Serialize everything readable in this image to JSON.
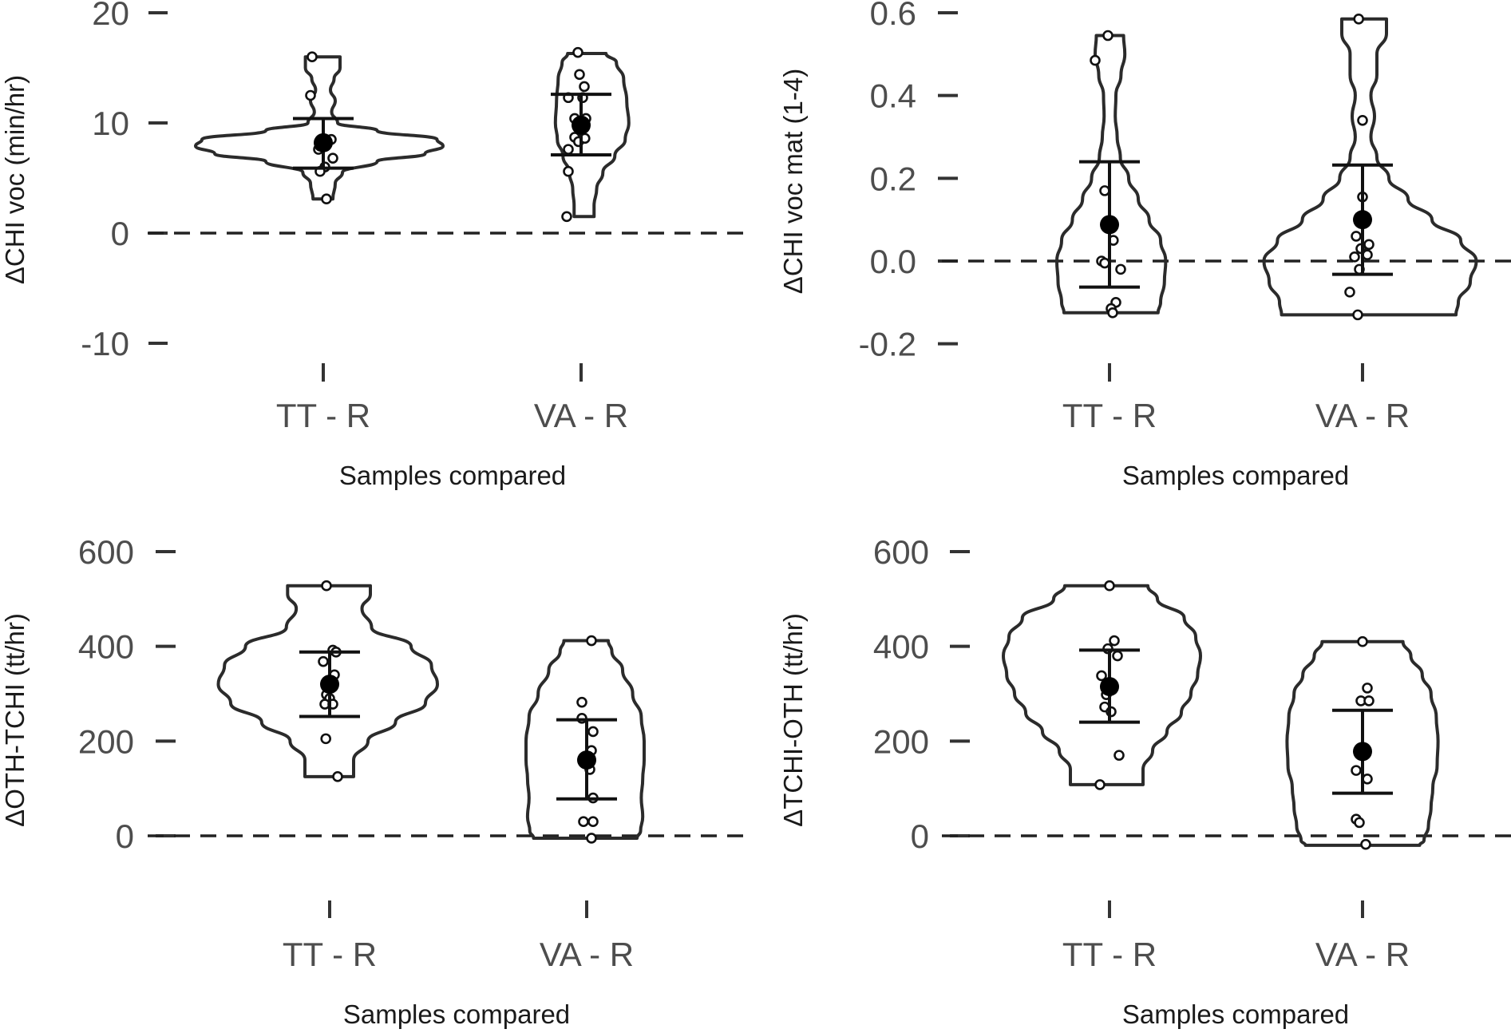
{
  "chart_data": [
    {
      "type": "violin",
      "ylabel": "ΔCHI voc (min/hr)",
      "xlabel": "Samples compared",
      "categories": [
        "TT - R",
        "VA - R"
      ],
      "ylim": [
        -10,
        20
      ],
      "yticks": [
        -10,
        0,
        10,
        20
      ],
      "ytick_labels": [
        "-10",
        "0",
        "10",
        "20"
      ],
      "reference_line": 0,
      "groups": [
        {
          "category": "TT - R",
          "mean": 8.2,
          "ci_low": 5.9,
          "ci_high": 10.4,
          "points": [
            [
              -0.35,
              16.0
            ],
            [
              -0.4,
              12.5
            ],
            [
              -0.15,
              7.6
            ],
            [
              -0.1,
              7.9
            ],
            [
              0.0,
              8.3
            ],
            [
              0.25,
              8.5
            ],
            [
              0.05,
              6.0
            ],
            [
              0.3,
              6.8
            ],
            [
              -0.1,
              5.6
            ],
            [
              0.1,
              3.1
            ]
          ],
          "density": [
            [
              16.0,
              0.14
            ],
            [
              15.0,
              0.14
            ],
            [
              14.0,
              0.09
            ],
            [
              13.0,
              0.06
            ],
            [
              12.0,
              0.1
            ],
            [
              11.0,
              0.07
            ],
            [
              10.0,
              0.12
            ],
            [
              9.3,
              0.45
            ],
            [
              8.5,
              0.95
            ],
            [
              7.9,
              1.0
            ],
            [
              7.2,
              0.85
            ],
            [
              6.5,
              0.45
            ],
            [
              5.5,
              0.16
            ],
            [
              4.5,
              0.1
            ],
            [
              3.1,
              0.08
            ]
          ]
        },
        {
          "category": "VA - R",
          "mean": 9.8,
          "ci_low": 7.1,
          "ci_high": 12.6,
          "points": [
            [
              -0.1,
              16.4
            ],
            [
              -0.05,
              14.4
            ],
            [
              0.1,
              13.3
            ],
            [
              -0.4,
              12.3
            ],
            [
              0.05,
              12.3
            ],
            [
              -0.2,
              10.4
            ],
            [
              0.15,
              10.4
            ],
            [
              -0.2,
              8.7
            ],
            [
              -0.08,
              8.3
            ],
            [
              0.12,
              8.6
            ],
            [
              -0.4,
              7.6
            ],
            [
              -0.4,
              5.6
            ],
            [
              -0.45,
              1.5
            ]
          ],
          "density": [
            [
              16.3,
              0.48
            ],
            [
              15.5,
              0.68
            ],
            [
              14.0,
              0.82
            ],
            [
              12.0,
              0.88
            ],
            [
              10.0,
              0.92
            ],
            [
              8.5,
              0.85
            ],
            [
              7.0,
              0.65
            ],
            [
              5.5,
              0.42
            ],
            [
              4.0,
              0.3
            ],
            [
              2.5,
              0.25
            ],
            [
              1.5,
              0.25
            ]
          ]
        }
      ]
    },
    {
      "type": "violin",
      "ylabel": "ΔCHI voc mat (1-4)",
      "xlabel": "Samples compared",
      "categories": [
        "TT - R",
        "VA - R"
      ],
      "ylim": [
        -0.2,
        0.6
      ],
      "yticks": [
        -0.2,
        0.0,
        0.2,
        0.4,
        0.6
      ],
      "ytick_labels": [
        "-0.2",
        "0.0",
        "0.2",
        "0.4",
        "0.6"
      ],
      "reference_line": 0,
      "groups": [
        {
          "category": "TT - R",
          "mean": 0.088,
          "ci_low": -0.063,
          "ci_high": 0.24,
          "points": [
            [
              -0.05,
              0.545
            ],
            [
              -0.45,
              0.485
            ],
            [
              -0.15,
              0.17
            ],
            [
              0.12,
              0.05
            ],
            [
              -0.25,
              0.0
            ],
            [
              -0.15,
              -0.005
            ],
            [
              0.35,
              -0.02
            ],
            [
              0.2,
              -0.1
            ],
            [
              0.05,
              -0.115
            ],
            [
              0.1,
              -0.125
            ]
          ],
          "density": [
            [
              0.545,
              0.22
            ],
            [
              0.5,
              0.24
            ],
            [
              0.45,
              0.18
            ],
            [
              0.4,
              0.1
            ],
            [
              0.35,
              0.09
            ],
            [
              0.3,
              0.12
            ],
            [
              0.25,
              0.17
            ],
            [
              0.2,
              0.3
            ],
            [
              0.15,
              0.45
            ],
            [
              0.1,
              0.62
            ],
            [
              0.05,
              0.8
            ],
            [
              0.0,
              0.88
            ],
            [
              -0.05,
              0.86
            ],
            [
              -0.1,
              0.8
            ],
            [
              -0.125,
              0.76
            ]
          ]
        },
        {
          "category": "VA - R",
          "mean": 0.1,
          "ci_low": -0.032,
          "ci_high": 0.232,
          "points": [
            [
              -0.12,
              0.585
            ],
            [
              0.0,
              0.34
            ],
            [
              0.0,
              0.155
            ],
            [
              -0.1,
              0.105
            ],
            [
              -0.2,
              0.06
            ],
            [
              -0.05,
              0.03
            ],
            [
              0.2,
              0.04
            ],
            [
              -0.25,
              0.01
            ],
            [
              0.15,
              0.015
            ],
            [
              -0.1,
              -0.02
            ],
            [
              -0.4,
              -0.075
            ],
            [
              -0.15,
              -0.13
            ]
          ],
          "density": [
            [
              0.585,
              0.2
            ],
            [
              0.55,
              0.2
            ],
            [
              0.5,
              0.12
            ],
            [
              0.45,
              0.12
            ],
            [
              0.4,
              0.07
            ],
            [
              0.35,
              0.1
            ],
            [
              0.3,
              0.07
            ],
            [
              0.25,
              0.12
            ],
            [
              0.2,
              0.22
            ],
            [
              0.15,
              0.38
            ],
            [
              0.1,
              0.58
            ],
            [
              0.05,
              0.82
            ],
            [
              0.0,
              0.95
            ],
            [
              -0.05,
              0.9
            ],
            [
              -0.1,
              0.8
            ],
            [
              -0.13,
              0.78
            ]
          ]
        }
      ]
    },
    {
      "type": "violin",
      "ylabel": "ΔOTH-TCHI (tt/hr)",
      "xlabel": "Samples compared",
      "categories": [
        "TT - R",
        "VA - R"
      ],
      "ylim": [
        0,
        600
      ],
      "yticks": [
        0,
        200,
        400,
        600
      ],
      "ytick_labels": [
        "0",
        "200",
        "400",
        "600"
      ],
      "reference_line": 0,
      "groups": [
        {
          "category": "TT - R",
          "mean": 320,
          "ci_low": 252,
          "ci_high": 388,
          "points": [
            [
              -0.1,
              528
            ],
            [
              -0.2,
              368
            ],
            [
              0.1,
              392
            ],
            [
              0.2,
              388
            ],
            [
              0.15,
              340
            ],
            [
              -0.1,
              298
            ],
            [
              0.0,
              290
            ],
            [
              -0.15,
              278
            ],
            [
              0.1,
              278
            ],
            [
              -0.12,
              205
            ],
            [
              0.25,
              125
            ]
          ],
          "density": [
            [
              528,
              0.34
            ],
            [
              510,
              0.34
            ],
            [
              480,
              0.27
            ],
            [
              440,
              0.35
            ],
            [
              400,
              0.68
            ],
            [
              360,
              0.85
            ],
            [
              320,
              0.9
            ],
            [
              280,
              0.8
            ],
            [
              240,
              0.55
            ],
            [
              200,
              0.32
            ],
            [
              160,
              0.2
            ],
            [
              125,
              0.2
            ]
          ]
        },
        {
          "category": "VA - R",
          "mean": 160,
          "ci_low": 78,
          "ci_high": 245,
          "points": [
            [
              0.15,
              412
            ],
            [
              -0.15,
              282
            ],
            [
              -0.15,
              248
            ],
            [
              0.2,
              220
            ],
            [
              0.15,
              180
            ],
            [
              0.1,
              140
            ],
            [
              0.2,
              80
            ],
            [
              -0.1,
              30
            ],
            [
              0.2,
              30
            ],
            [
              0.15,
              -5
            ]
          ],
          "density": [
            [
              412,
              0.3
            ],
            [
              390,
              0.35
            ],
            [
              350,
              0.5
            ],
            [
              300,
              0.64
            ],
            [
              250,
              0.76
            ],
            [
              200,
              0.8
            ],
            [
              160,
              0.8
            ],
            [
              120,
              0.78
            ],
            [
              80,
              0.76
            ],
            [
              40,
              0.78
            ],
            [
              10,
              0.75
            ],
            [
              -5,
              0.7
            ]
          ]
        }
      ]
    },
    {
      "type": "violin",
      "ylabel": "ΔTCHI-OTH (tt/hr)",
      "xlabel": "Samples compared",
      "categories": [
        "TT - R",
        "VA - R"
      ],
      "ylim": [
        0,
        600
      ],
      "yticks": [
        0,
        200,
        400,
        600
      ],
      "ytick_labels": [
        "0",
        "200",
        "400",
        "600"
      ],
      "reference_line": 0,
      "groups": [
        {
          "category": "TT - R",
          "mean": 315,
          "ci_low": 240,
          "ci_high": 392,
          "points": [
            [
              0.0,
              528
            ],
            [
              0.15,
              412
            ],
            [
              -0.05,
              395
            ],
            [
              0.25,
              380
            ],
            [
              -0.25,
              338
            ],
            [
              -0.1,
              298
            ],
            [
              -0.15,
              272
            ],
            [
              0.05,
              262
            ],
            [
              0.3,
              170
            ],
            [
              -0.3,
              108
            ]
          ],
          "density": [
            [
              528,
              0.4
            ],
            [
              500,
              0.5
            ],
            [
              460,
              0.78
            ],
            [
              420,
              0.9
            ],
            [
              380,
              0.95
            ],
            [
              340,
              0.92
            ],
            [
              300,
              0.85
            ],
            [
              260,
              0.75
            ],
            [
              220,
              0.6
            ],
            [
              180,
              0.45
            ],
            [
              140,
              0.35
            ],
            [
              108,
              0.35
            ]
          ]
        },
        {
          "category": "VA - R",
          "mean": 178,
          "ci_low": 90,
          "ci_high": 265,
          "points": [
            [
              0.0,
              410
            ],
            [
              0.15,
              312
            ],
            [
              -0.05,
              285
            ],
            [
              0.2,
              285
            ],
            [
              0.15,
              120
            ],
            [
              -0.2,
              138
            ],
            [
              -0.2,
              35
            ],
            [
              -0.1,
              28
            ],
            [
              0.1,
              -18
            ]
          ],
          "density": [
            [
              410,
              0.46
            ],
            [
              380,
              0.55
            ],
            [
              340,
              0.68
            ],
            [
              300,
              0.78
            ],
            [
              250,
              0.84
            ],
            [
              200,
              0.86
            ],
            [
              150,
              0.85
            ],
            [
              100,
              0.8
            ],
            [
              60,
              0.78
            ],
            [
              20,
              0.75
            ],
            [
              -10,
              0.7
            ],
            [
              -20,
              0.65
            ]
          ]
        }
      ]
    }
  ]
}
